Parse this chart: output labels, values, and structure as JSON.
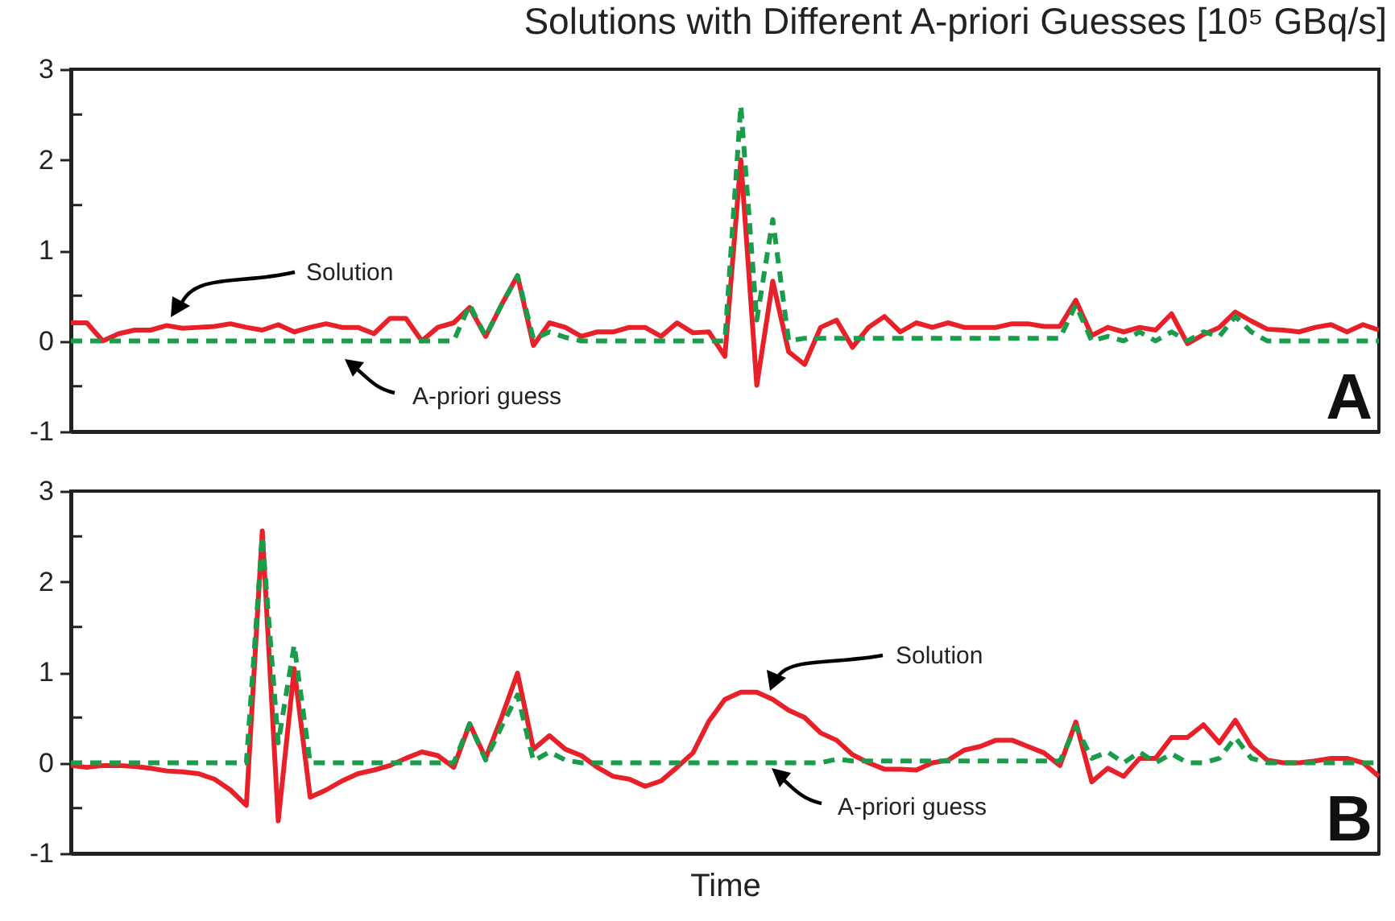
{
  "chart_data": [
    {
      "type": "line",
      "title": "Solutions with Different A-priori Guesses [10⁵ GBq/s]",
      "categories": [
        null,
        null,
        null,
        null,
        null,
        null,
        null,
        null,
        null,
        null,
        null,
        null,
        null,
        null,
        null,
        null,
        null,
        null,
        null,
        null,
        null,
        null,
        null,
        null,
        null,
        null,
        null,
        null,
        null,
        null,
        null,
        null,
        null,
        null,
        null,
        null,
        null,
        null,
        null,
        null,
        null,
        null,
        null,
        null,
        null,
        null,
        null,
        null,
        null,
        null,
        null,
        null,
        null,
        null,
        null,
        null,
        null,
        null,
        null,
        null,
        null,
        null,
        null,
        null,
        null,
        null,
        null,
        null,
        null,
        null,
        null,
        null,
        null,
        null,
        null,
        null,
        null,
        null,
        null,
        null,
        null,
        null,
        null
      ],
      "series": [
        {
          "name": "Solution",
          "color": "#e8202a",
          "line_style": "solid",
          "values": [
            0.2,
            0.2,
            0.0,
            0.08,
            0.12,
            0.12,
            0.17,
            0.14,
            0.15,
            0.16,
            0.19,
            0.15,
            0.12,
            0.18,
            0.1,
            0.15,
            0.19,
            0.15,
            0.15,
            0.08,
            0.25,
            0.25,
            0.0,
            0.15,
            0.2,
            0.37,
            0.05,
            0.4,
            0.72,
            -0.05,
            0.2,
            0.15,
            0.05,
            0.1,
            0.1,
            0.15,
            0.15,
            0.05,
            0.2,
            0.09,
            0.1,
            -0.17,
            2.0,
            -0.49,
            0.66,
            -0.12,
            -0.26,
            0.15,
            0.23,
            -0.07,
            0.15,
            0.27,
            0.1,
            0.2,
            0.15,
            0.2,
            0.15,
            0.15,
            0.15,
            0.19,
            0.19,
            0.16,
            0.16,
            0.45,
            0.06,
            0.15,
            0.1,
            0.15,
            0.12,
            0.3,
            -0.03,
            0.07,
            0.15,
            0.32,
            0.22,
            0.13,
            0.12,
            0.1,
            0.15,
            0.18,
            0.1,
            0.18,
            0.12
          ]
        },
        {
          "name": "A-priori guess",
          "color": "#1a9d4a",
          "line_style": "dashed",
          "values": [
            0,
            0,
            0,
            0,
            0,
            0,
            0,
            0,
            0,
            0,
            0,
            0,
            0,
            0,
            0,
            0,
            0,
            0,
            0,
            0,
            0,
            0,
            0,
            0,
            0,
            0.4,
            0.05,
            0.4,
            0.72,
            0.02,
            0.1,
            0.04,
            0,
            0,
            0,
            0,
            0,
            0,
            0,
            0,
            0,
            0,
            2.6,
            0.23,
            1.34,
            0,
            0.03,
            0.03,
            0.03,
            0.03,
            0.03,
            0.03,
            0.03,
            0.03,
            0.03,
            0.03,
            0.03,
            0.03,
            0.03,
            0.03,
            0.03,
            0.03,
            0.03,
            0.4,
            0,
            0.05,
            0,
            0.1,
            0,
            0.1,
            0,
            0.1,
            0.05,
            0.27,
            0.1,
            0,
            0,
            0,
            0,
            0,
            0,
            0,
            0
          ]
        }
      ],
      "ylim": [
        -1,
        3
      ],
      "yticks": [
        -1,
        {
          "value": -0.5,
          "label": null
        },
        0,
        {
          "value": 0.5,
          "label": null
        },
        1,
        {
          "value": 1.5,
          "label": null
        },
        2,
        {
          "value": 2.5,
          "label": null
        },
        3
      ],
      "annotations": [
        "A"
      ]
    },
    {
      "type": "line",
      "xlabel": "Time",
      "categories": [
        null,
        null,
        null,
        null,
        null,
        null,
        null,
        null,
        null,
        null,
        null,
        null,
        null,
        null,
        null,
        null,
        null,
        null,
        null,
        null,
        null,
        null,
        null,
        null,
        null,
        null,
        null,
        null,
        null,
        null,
        null,
        null,
        null,
        null,
        null,
        null,
        null,
        null,
        null,
        null,
        null,
        null,
        null,
        null,
        null,
        null,
        null,
        null,
        null,
        null,
        null,
        null,
        null,
        null,
        null,
        null,
        null,
        null,
        null,
        null,
        null,
        null,
        null,
        null,
        null,
        null,
        null,
        null,
        null,
        null,
        null,
        null,
        null,
        null,
        null,
        null,
        null,
        null,
        null,
        null,
        null,
        null,
        null
      ],
      "series": [
        {
          "name": "Solution",
          "color": "#e8202a",
          "line_style": "solid",
          "values": [
            -0.03,
            -0.05,
            -0.03,
            -0.03,
            -0.04,
            -0.06,
            -0.09,
            -0.1,
            -0.12,
            -0.18,
            -0.3,
            -0.47,
            2.56,
            -0.64,
            1.04,
            -0.38,
            -0.3,
            -0.2,
            -0.12,
            -0.08,
            -0.03,
            0.05,
            0.12,
            0.08,
            -0.05,
            0.43,
            0.05,
            0.5,
            0.99,
            0.15,
            0.3,
            0.15,
            0.08,
            -0.05,
            -0.15,
            -0.18,
            -0.26,
            -0.2,
            -0.05,
            0.11,
            0.46,
            0.7,
            0.78,
            0.78,
            0.7,
            0.58,
            0.5,
            0.33,
            0.25,
            0.09,
            0,
            -0.07,
            -0.07,
            -0.08,
            0,
            0.03,
            0.14,
            0.18,
            0.25,
            0.25,
            0.18,
            0.11,
            -0.03,
            0.45,
            -0.21,
            -0.06,
            -0.15,
            0.05,
            0.05,
            0.28,
            0.28,
            0.42,
            0.22,
            0.47,
            0.18,
            0.03,
            0,
            0,
            0.02,
            0.05,
            0.05,
            0,
            -0.15
          ]
        },
        {
          "name": "A-priori guess",
          "color": "#1a9d4a",
          "line_style": "dashed",
          "values": [
            0,
            0,
            0,
            0,
            0,
            0,
            0,
            0,
            0,
            0,
            0,
            0,
            2.5,
            0.22,
            1.3,
            0,
            0,
            0,
            0,
            0,
            0,
            0,
            0,
            0,
            0,
            0.43,
            0.03,
            0.4,
            0.75,
            0.02,
            0.12,
            0.03,
            0,
            0,
            0,
            0,
            0,
            0,
            0,
            0,
            0,
            0,
            0,
            0,
            0,
            0,
            0,
            0,
            0.04,
            0.02,
            0.02,
            0.02,
            0.02,
            0.02,
            0.02,
            0.02,
            0.02,
            0.02,
            0.02,
            0.02,
            0.02,
            0.02,
            0.02,
            0.4,
            0.05,
            0.12,
            0,
            0.12,
            0,
            0.1,
            0,
            0,
            0.05,
            0.28,
            0.05,
            0,
            0,
            0,
            0,
            0,
            0,
            0,
            0
          ]
        }
      ],
      "ylim": [
        -1,
        3
      ],
      "yticks": [
        -1,
        {
          "value": -0.5,
          "label": null
        },
        0,
        {
          "value": 0.5,
          "label": null
        },
        1,
        {
          "value": 1.5,
          "label": null
        },
        2,
        {
          "value": 2.5,
          "label": null
        },
        3
      ],
      "annotations": [
        "B"
      ]
    }
  ]
}
